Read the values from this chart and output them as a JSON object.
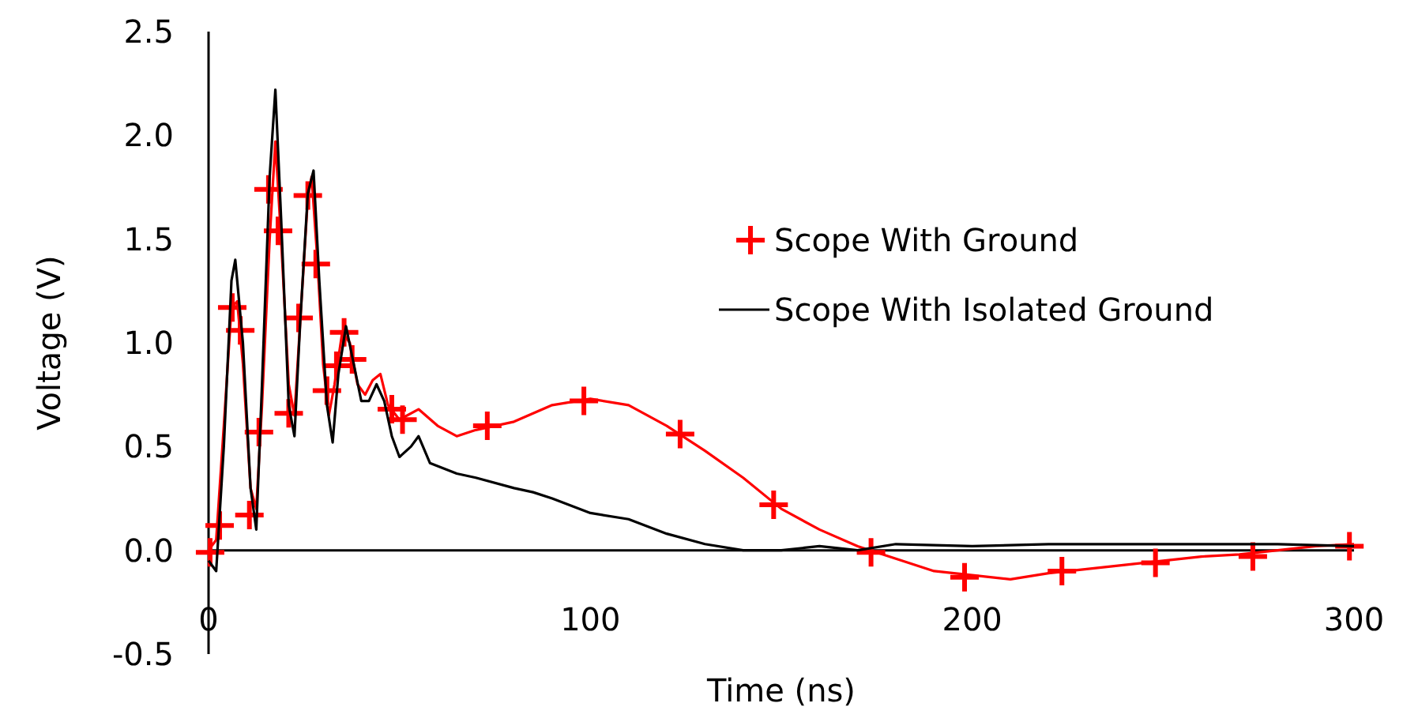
{
  "chart_data": {
    "type": "line",
    "xlabel": "Time (ns)",
    "ylabel": "Voltage (V)",
    "xlim": [
      0,
      300
    ],
    "xticks": [
      0,
      100,
      200,
      300
    ],
    "ylim": [
      -0.5,
      2.5
    ],
    "yticks": [
      -0.5,
      {
        "value": 0,
        "label": "0.0"
      },
      0.5,
      {
        "value": 1,
        "label": "1.0"
      },
      1.5,
      {
        "value": 2,
        "label": "2.0"
      },
      2.5
    ],
    "grid": false,
    "legend": "right",
    "series": [
      {
        "name": "Scope With Ground",
        "type": "scatter",
        "marker": "cross",
        "color": "#ff0000",
        "x": [
          0.4,
          2.9,
          6.2,
          8.3,
          10.7,
          13.2,
          15.7,
          18.2,
          21,
          23.6,
          26,
          28.1,
          31,
          33.5,
          35.5,
          37.6,
          48,
          50.8,
          73,
          98.3,
          123.5,
          148,
          173.5,
          198,
          223.5,
          248,
          273.5,
          298.8
        ],
        "values": [
          -0.01,
          0.12,
          1.17,
          1.06,
          0.17,
          0.57,
          1.74,
          1.54,
          0.66,
          1.12,
          1.71,
          1.38,
          0.77,
          0.89,
          1.05,
          0.92,
          0.68,
          0.63,
          0.6,
          0.72,
          0.56,
          0.22,
          -0.01,
          -0.13,
          -0.1,
          -0.06,
          -0.03,
          0.02
        ]
      },
      {
        "type": "line",
        "color": "#ff0000",
        "x": [
          0,
          2,
          4,
          6,
          7.5,
          9,
          11,
          12.5,
          14,
          16,
          17.5,
          19,
          21,
          22.5,
          24,
          26,
          27,
          28.5,
          30,
          31.5,
          33,
          35,
          37,
          39,
          41,
          43,
          45,
          47,
          50,
          55,
          60,
          65,
          70,
          80,
          90,
          100,
          110,
          120,
          130,
          140,
          150,
          160,
          170,
          180,
          190,
          200,
          210,
          220,
          230,
          240,
          250,
          260,
          270,
          280,
          290,
          300
        ],
        "values": [
          0,
          0.05,
          0.6,
          1.17,
          1.2,
          0.9,
          0.3,
          0.2,
          0.7,
          1.5,
          1.97,
          1.5,
          0.8,
          0.65,
          1.1,
          1.7,
          1.8,
          1.4,
          0.9,
          0.65,
          0.8,
          1.05,
          1,
          0.8,
          0.75,
          0.82,
          0.85,
          0.7,
          0.63,
          0.68,
          0.6,
          0.55,
          0.58,
          0.62,
          0.7,
          0.73,
          0.7,
          0.6,
          0.48,
          0.35,
          0.2,
          0.1,
          0.02,
          -0.04,
          -0.1,
          -0.12,
          -0.14,
          -0.11,
          -0.09,
          -0.07,
          -0.05,
          -0.03,
          -0.02,
          0,
          0.02,
          0.03
        ]
      },
      {
        "name": "Scope With Isolated Ground",
        "color": "#000000",
        "x": [
          0,
          2,
          4,
          6,
          7,
          9,
          11,
          12.5,
          14,
          16,
          17.5,
          19,
          21,
          22.5,
          24,
          26,
          27.5,
          29,
          31,
          32.5,
          34,
          36,
          38,
          40,
          42,
          44,
          46,
          48,
          50,
          53,
          55,
          58,
          65,
          70,
          80,
          85,
          90,
          100,
          110,
          120,
          130,
          140,
          150,
          160,
          170,
          180,
          200,
          220,
          250,
          280,
          300
        ],
        "values": [
          -0.05,
          -0.1,
          0.5,
          1.3,
          1.4,
          1,
          0.3,
          0.1,
          0.8,
          1.8,
          2.22,
          1.6,
          0.7,
          0.55,
          1.1,
          1.72,
          1.83,
          1.3,
          0.7,
          0.52,
          0.85,
          1.08,
          0.9,
          0.72,
          0.72,
          0.8,
          0.72,
          0.55,
          0.45,
          0.5,
          0.55,
          0.42,
          0.37,
          0.35,
          0.3,
          0.28,
          0.25,
          0.18,
          0.15,
          0.08,
          0.03,
          0,
          0,
          0.02,
          0,
          0.03,
          0.02,
          0.03,
          0.03,
          0.03,
          0.02
        ]
      }
    ]
  }
}
